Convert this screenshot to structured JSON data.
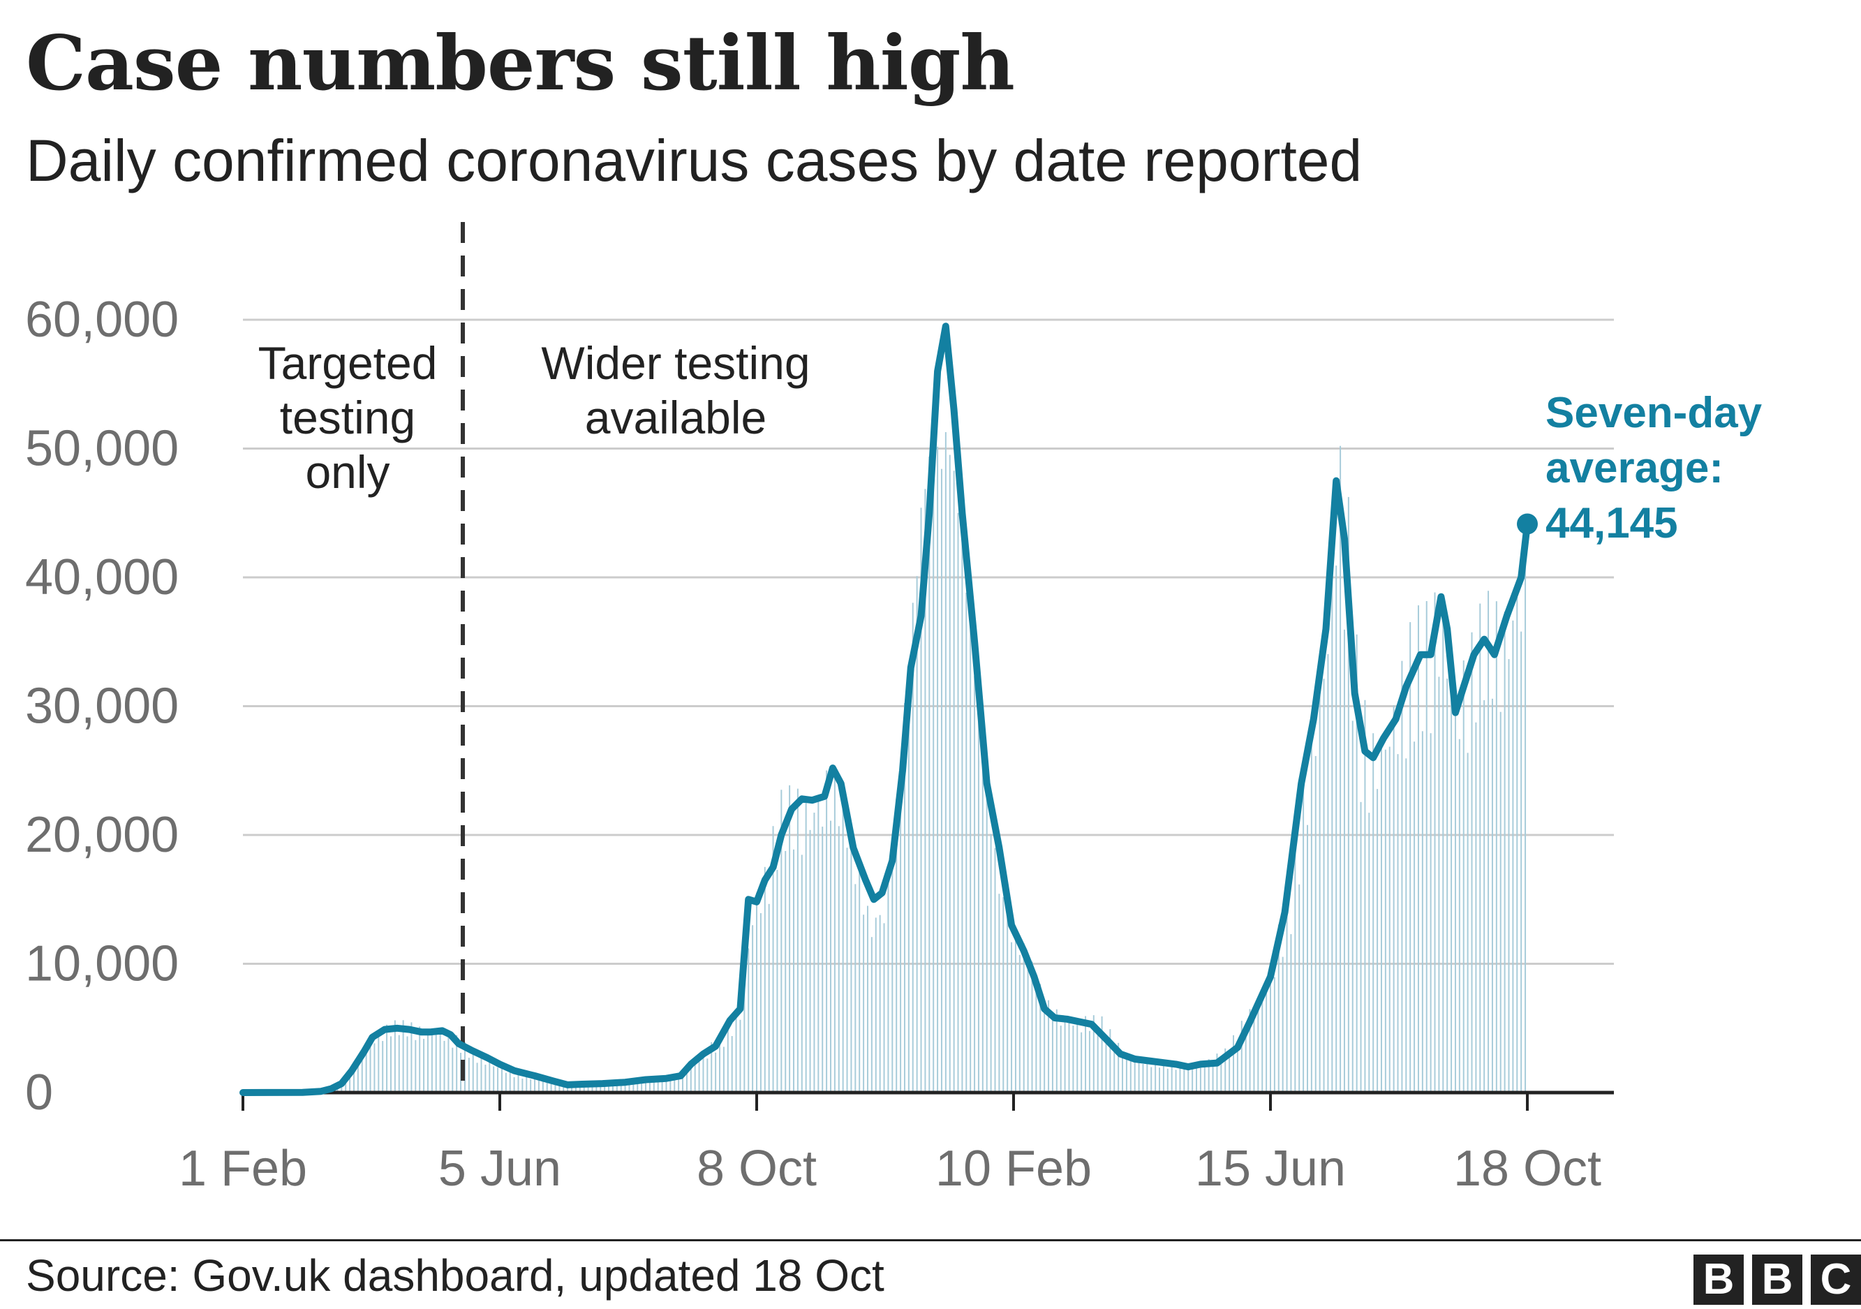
{
  "header": {
    "title": "Case numbers still high",
    "subtitle": "Daily confirmed coronavirus cases by date reported"
  },
  "annotations": {
    "targeted_lines": [
      "Targeted",
      "testing",
      "only"
    ],
    "wider_lines": [
      "Wider testing",
      "available"
    ],
    "callout_lines": [
      "Seven-day",
      "average:",
      "44,145"
    ]
  },
  "footer": {
    "source": "Source: Gov.uk dashboard, updated 18 Oct",
    "logo_letters": [
      "B",
      "B",
      "C"
    ]
  },
  "colors": {
    "line": "#1380A1",
    "bars": "#A8CCDA",
    "text": "#222222",
    "axis_text": "#6E6E6E",
    "grid": "#CCCCCC"
  },
  "chart_data": {
    "type": "line",
    "x_unit": "day",
    "x_start": "2020-02-01",
    "x_end": "2021-10-18",
    "ylim": [
      0,
      60000
    ],
    "yticks": [
      0,
      10000,
      20000,
      30000,
      40000,
      50000,
      60000
    ],
    "ytick_labels": [
      "0",
      "10,000",
      "20,000",
      "30,000",
      "40,000",
      "50,000",
      "60,000"
    ],
    "xticks": [
      {
        "date": "2020-02-01",
        "label": "1 Feb"
      },
      {
        "date": "2020-06-05",
        "label": "5 Jun"
      },
      {
        "date": "2020-10-08",
        "label": "8 Oct"
      },
      {
        "date": "2021-02-10",
        "label": "10 Feb"
      },
      {
        "date": "2021-06-15",
        "label": "15 Jun"
      },
      {
        "date": "2021-10-18",
        "label": "18 Oct"
      }
    ],
    "divider_date": "2020-05-18",
    "series": [
      {
        "kind": "bars",
        "points": [
          [
            "2020-02-01",
            0
          ],
          [
            "2020-03-01",
            30
          ],
          [
            "2020-03-10",
            100
          ],
          [
            "2020-03-18",
            600
          ],
          [
            "2020-03-24",
            1500
          ],
          [
            "2020-03-31",
            3200
          ],
          [
            "2020-04-07",
            4800
          ],
          [
            "2020-04-14",
            5100
          ],
          [
            "2020-04-21",
            5000
          ],
          [
            "2020-04-28",
            4800
          ],
          [
            "2020-05-05",
            4900
          ],
          [
            "2020-05-12",
            4400
          ],
          [
            "2020-05-18",
            3500
          ],
          [
            "2020-05-26",
            2700
          ],
          [
            "2020-06-05",
            1900
          ],
          [
            "2020-06-12",
            1400
          ],
          [
            "2020-06-22",
            1200
          ],
          [
            "2020-07-01",
            800
          ],
          [
            "2020-07-10",
            600
          ],
          [
            "2020-07-20",
            650
          ],
          [
            "2020-08-01",
            750
          ],
          [
            "2020-08-15",
            900
          ],
          [
            "2020-08-25",
            1100
          ],
          [
            "2020-09-01",
            1350
          ],
          [
            "2020-09-08",
            2500
          ],
          [
            "2020-09-15",
            3300
          ],
          [
            "2020-09-22",
            4200
          ],
          [
            "2020-09-30",
            6500
          ],
          [
            "2020-10-04",
            12000
          ],
          [
            "2020-10-08",
            15500
          ],
          [
            "2020-10-12",
            16500
          ],
          [
            "2020-10-20",
            21000
          ],
          [
            "2020-10-27",
            22000
          ],
          [
            "2020-11-05",
            23500
          ],
          [
            "2020-11-12",
            25000
          ],
          [
            "2020-11-19",
            22000
          ],
          [
            "2020-11-26",
            17000
          ],
          [
            "2020-12-02",
            14500
          ],
          [
            "2020-12-09",
            16000
          ],
          [
            "2020-12-16",
            24000
          ],
          [
            "2020-12-22",
            35000
          ],
          [
            "2020-12-29",
            50000
          ],
          [
            "2021-01-04",
            58000
          ],
          [
            "2021-01-08",
            60000
          ],
          [
            "2021-01-12",
            52000
          ],
          [
            "2021-01-18",
            40000
          ],
          [
            "2021-01-25",
            28000
          ],
          [
            "2021-02-01",
            20000
          ],
          [
            "2021-02-10",
            13500
          ],
          [
            "2021-02-18",
            10000
          ],
          [
            "2021-02-25",
            7000
          ],
          [
            "2021-03-05",
            6200
          ],
          [
            "2021-03-15",
            5700
          ],
          [
            "2021-03-25",
            5300
          ],
          [
            "2021-04-05",
            3000
          ],
          [
            "2021-04-15",
            2500
          ],
          [
            "2021-04-25",
            2200
          ],
          [
            "2021-05-05",
            2100
          ],
          [
            "2021-05-15",
            2300
          ],
          [
            "2021-05-25",
            3000
          ],
          [
            "2021-06-05",
            6000
          ],
          [
            "2021-06-15",
            9000
          ],
          [
            "2021-06-25",
            15000
          ],
          [
            "2021-07-05",
            26000
          ],
          [
            "2021-07-12",
            33000
          ],
          [
            "2021-07-17",
            46000
          ],
          [
            "2021-07-22",
            42000
          ],
          [
            "2021-07-28",
            28000
          ],
          [
            "2021-08-03",
            25000
          ],
          [
            "2021-08-12",
            28000
          ],
          [
            "2021-08-22",
            32000
          ],
          [
            "2021-09-01",
            34000
          ],
          [
            "2021-09-06",
            38000
          ],
          [
            "2021-09-12",
            31000
          ],
          [
            "2021-09-20",
            32000
          ],
          [
            "2021-09-28",
            35000
          ],
          [
            "2021-10-05",
            36000
          ],
          [
            "2021-10-12",
            40000
          ],
          [
            "2021-10-18",
            44000
          ]
        ]
      },
      {
        "kind": "line",
        "points": [
          [
            "2020-02-01",
            0
          ],
          [
            "2020-03-01",
            10
          ],
          [
            "2020-03-10",
            100
          ],
          [
            "2020-03-15",
            300
          ],
          [
            "2020-03-20",
            700
          ],
          [
            "2020-03-25",
            1700
          ],
          [
            "2020-03-31",
            3200
          ],
          [
            "2020-04-04",
            4300
          ],
          [
            "2020-04-10",
            4900
          ],
          [
            "2020-04-16",
            5000
          ],
          [
            "2020-04-22",
            4900
          ],
          [
            "2020-04-28",
            4700
          ],
          [
            "2020-05-02",
            4700
          ],
          [
            "2020-05-08",
            4800
          ],
          [
            "2020-05-12",
            4500
          ],
          [
            "2020-05-16",
            3800
          ],
          [
            "2020-05-22",
            3300
          ],
          [
            "2020-05-30",
            2700
          ],
          [
            "2020-06-05",
            2200
          ],
          [
            "2020-06-12",
            1700
          ],
          [
            "2020-06-22",
            1300
          ],
          [
            "2020-07-01",
            900
          ],
          [
            "2020-07-08",
            600
          ],
          [
            "2020-07-15",
            650
          ],
          [
            "2020-07-25",
            700
          ],
          [
            "2020-08-05",
            800
          ],
          [
            "2020-08-15",
            1000
          ],
          [
            "2020-08-25",
            1100
          ],
          [
            "2020-09-01",
            1300
          ],
          [
            "2020-09-06",
            2200
          ],
          [
            "2020-09-12",
            3000
          ],
          [
            "2020-09-18",
            3600
          ],
          [
            "2020-09-25",
            5600
          ],
          [
            "2020-09-30",
            6500
          ],
          [
            "2020-10-04",
            15000
          ],
          [
            "2020-10-08",
            14800
          ],
          [
            "2020-10-12",
            16500
          ],
          [
            "2020-10-16",
            17500
          ],
          [
            "2020-10-20",
            20000
          ],
          [
            "2020-10-25",
            22000
          ],
          [
            "2020-10-30",
            22800
          ],
          [
            "2020-11-04",
            22700
          ],
          [
            "2020-11-10",
            23000
          ],
          [
            "2020-11-14",
            25200
          ],
          [
            "2020-11-18",
            24000
          ],
          [
            "2020-11-24",
            19000
          ],
          [
            "2020-11-30",
            16500
          ],
          [
            "2020-12-04",
            15000
          ],
          [
            "2020-12-08",
            15500
          ],
          [
            "2020-12-13",
            18000
          ],
          [
            "2020-12-18",
            25000
          ],
          [
            "2020-12-22",
            33000
          ],
          [
            "2020-12-27",
            37000
          ],
          [
            "2020-12-31",
            45000
          ],
          [
            "2021-01-04",
            56000
          ],
          [
            "2021-01-08",
            59500
          ],
          [
            "2021-01-12",
            53000
          ],
          [
            "2021-01-16",
            45000
          ],
          [
            "2021-01-22",
            35000
          ],
          [
            "2021-01-28",
            24000
          ],
          [
            "2021-02-03",
            19000
          ],
          [
            "2021-02-09",
            13000
          ],
          [
            "2021-02-15",
            11000
          ],
          [
            "2021-02-20",
            9000
          ],
          [
            "2021-02-25",
            6500
          ],
          [
            "2021-03-02",
            5800
          ],
          [
            "2021-03-08",
            5700
          ],
          [
            "2021-03-14",
            5500
          ],
          [
            "2021-03-20",
            5300
          ],
          [
            "2021-03-28",
            4000
          ],
          [
            "2021-04-03",
            3000
          ],
          [
            "2021-04-10",
            2600
          ],
          [
            "2021-04-20",
            2400
          ],
          [
            "2021-04-30",
            2200
          ],
          [
            "2021-05-06",
            2000
          ],
          [
            "2021-05-12",
            2200
          ],
          [
            "2021-05-20",
            2300
          ],
          [
            "2021-05-30",
            3500
          ],
          [
            "2021-06-05",
            5500
          ],
          [
            "2021-06-15",
            9000
          ],
          [
            "2021-06-22",
            14000
          ],
          [
            "2021-06-30",
            24000
          ],
          [
            "2021-07-06",
            29000
          ],
          [
            "2021-07-12",
            36000
          ],
          [
            "2021-07-17",
            47500
          ],
          [
            "2021-07-21",
            43000
          ],
          [
            "2021-07-26",
            31000
          ],
          [
            "2021-07-31",
            26500
          ],
          [
            "2021-08-04",
            26000
          ],
          [
            "2021-08-09",
            27500
          ],
          [
            "2021-08-15",
            29000
          ],
          [
            "2021-08-20",
            31500
          ],
          [
            "2021-08-27",
            34000
          ],
          [
            "2021-09-01",
            34000
          ],
          [
            "2021-09-06",
            38500
          ],
          [
            "2021-09-09",
            36000
          ],
          [
            "2021-09-13",
            29500
          ],
          [
            "2021-09-17",
            31500
          ],
          [
            "2021-09-22",
            34000
          ],
          [
            "2021-09-27",
            35200
          ],
          [
            "2021-10-02",
            34000
          ],
          [
            "2021-10-08",
            37000
          ],
          [
            "2021-10-15",
            40000
          ],
          [
            "2021-10-18",
            44145
          ]
        ]
      }
    ]
  }
}
